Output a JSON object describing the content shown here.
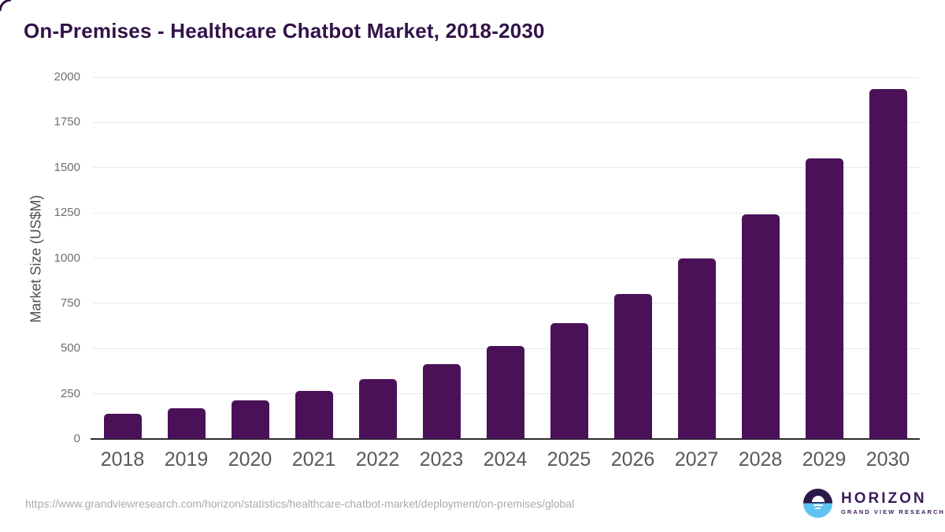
{
  "title": "On-Premises - Healthcare Chatbot Market, 2018-2030",
  "colors": {
    "bar": "#4a1158",
    "title": "#321349",
    "grid": "#e9e9e9",
    "axis_line": "#2d2d2d",
    "y_tick_label": "#6e6e6e",
    "x_tick_label": "#595959",
    "axis_title": "#4f4f4f",
    "url_text": "#ababab",
    "logo_purple": "#3c1d5c",
    "logo_navy": "#2b1a47",
    "logo_blue": "#5ec3f0",
    "corner_mark": "#2d1045"
  },
  "chart_data": {
    "type": "bar",
    "title": "On-Premises - Healthcare Chatbot Market, 2018-2030",
    "categories": [
      "2018",
      "2019",
      "2020",
      "2021",
      "2022",
      "2023",
      "2024",
      "2025",
      "2026",
      "2027",
      "2028",
      "2029",
      "2030"
    ],
    "values": [
      140,
      170,
      215,
      266,
      330,
      414,
      514,
      640,
      800,
      997,
      1244,
      1552,
      1934
    ],
    "xlabel": "",
    "ylabel": "Market Size (US$M)",
    "ylim": [
      0,
      2000
    ],
    "yticks": [
      0,
      250,
      500,
      750,
      1000,
      1250,
      1500,
      1750,
      2000
    ],
    "grid": true,
    "legend": false
  },
  "footer": {
    "source_url": "https://www.grandviewresearch.com/horizon/statistics/healthcare-chatbot-market/deployment/on-premises/global",
    "logo": {
      "brand": "HORIZON",
      "subtitle": "GRAND VIEW RESEARCH"
    }
  }
}
